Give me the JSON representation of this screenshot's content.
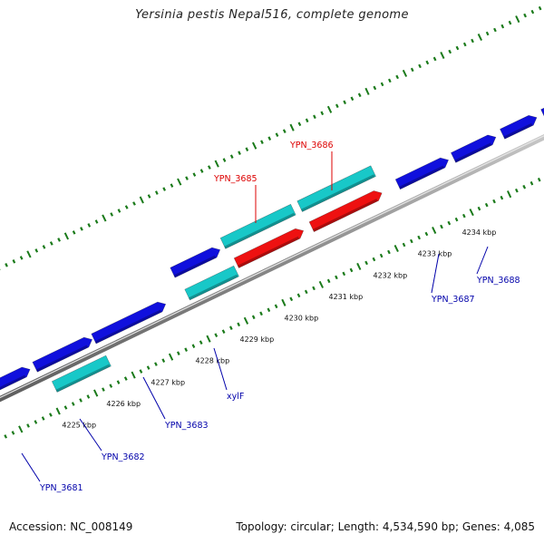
{
  "title": "Yersinia pestis Nepal516, complete genome",
  "footer": {
    "accession": "Accession: NC_008149",
    "summary": "Topology: circular; Length: 4,534,590 bp; Genes: 4,085"
  },
  "map": {
    "ticks": [
      {
        "kbp": 4225,
        "label": "4225 kbp"
      },
      {
        "kbp": 4226,
        "label": "4226 kbp"
      },
      {
        "kbp": 4227,
        "label": "4227 kbp"
      },
      {
        "kbp": 4228,
        "label": "4228 kbp"
      },
      {
        "kbp": 4229,
        "label": "4229 kbp"
      },
      {
        "kbp": 4230,
        "label": "4230 kbp"
      },
      {
        "kbp": 4231,
        "label": "4231 kbp"
      },
      {
        "kbp": 4232,
        "label": "4232 kbp"
      },
      {
        "kbp": 4233,
        "label": "4233 kbp"
      },
      {
        "kbp": 4234,
        "label": "4234 kbp"
      }
    ],
    "colors": {
      "backbone": "#8a8a8a",
      "cds_forward": "#1010dd",
      "cds_reverse": "#1010dd",
      "gene_cyan": "#18c8c8",
      "gene_red": "#ee1111",
      "dot_green": "#1a7a1a",
      "label_blue": "#0000aa",
      "label_red": "#dd0000"
    },
    "labels": [
      {
        "id": "YPN_3681",
        "text": "YPN_3681",
        "color": "blue"
      },
      {
        "id": "YPN_3682",
        "text": "YPN_3682",
        "color": "blue"
      },
      {
        "id": "YPN_3683",
        "text": "YPN_3683",
        "color": "blue"
      },
      {
        "id": "xylF",
        "text": "xylF",
        "color": "blue"
      },
      {
        "id": "YPN_3685",
        "text": "YPN_3685",
        "color": "red"
      },
      {
        "id": "YPN_3686",
        "text": "YPN_3686",
        "color": "red"
      },
      {
        "id": "YPN_3687",
        "text": "YPN_3687",
        "color": "blue"
      },
      {
        "id": "YPN_3688",
        "text": "YPN_3688",
        "color": "blue"
      }
    ]
  }
}
